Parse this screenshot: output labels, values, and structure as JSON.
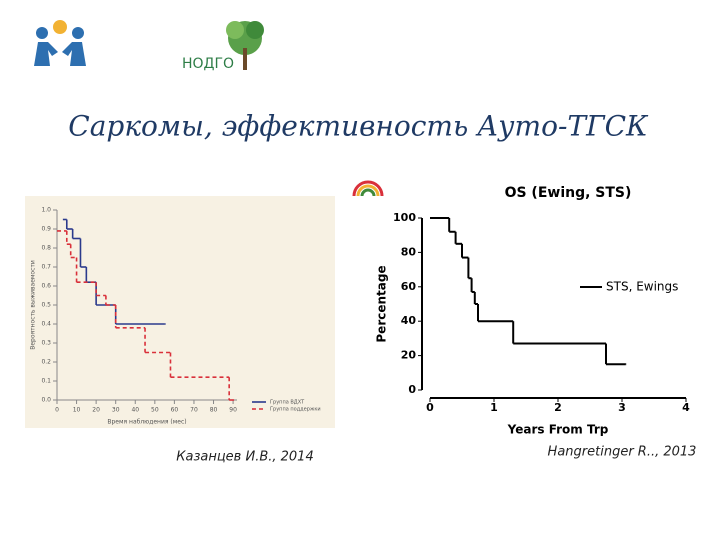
{
  "logo_text": "НОДГО",
  "title": "Саркомы, эффективность Ауто-ТГСК",
  "captions": [
    "Казанцев И.В., 2014",
    "Hangretinger R.., 2013"
  ],
  "chart_data": [
    {
      "type": "line",
      "step": true,
      "x_label": "Время наблюдения (мес)",
      "y_label": "Вероятность выживаемости",
      "xlim": [
        0,
        92
      ],
      "ylim": [
        0,
        1
      ],
      "xticks": [
        0,
        10,
        20,
        30,
        40,
        50,
        60,
        70,
        80,
        90
      ],
      "yticks": [
        {
          "value": 0,
          "label": "0.0"
        },
        0.1,
        0.2,
        0.3,
        0.4,
        0.5,
        0.6,
        0.7,
        0.8,
        0.9,
        {
          "value": 1,
          "label": "1.0"
        }
      ],
      "legend": "lower right",
      "series": [
        {
          "name": "Группа ВДХТ",
          "color": "#2b3a8c",
          "line_style": "solid",
          "x": [
            3,
            5,
            8,
            12,
            15,
            20,
            30,
            55
          ],
          "values": [
            0.95,
            0.9,
            0.85,
            0.7,
            0.62,
            0.5,
            0.4,
            0.4
          ]
        },
        {
          "name": "Группа поддержки",
          "color": "#d9303a",
          "line_style": "dashed",
          "x": [
            0,
            5,
            7,
            10,
            20,
            25,
            30,
            45,
            58,
            88,
            90
          ],
          "values": [
            0.89,
            0.82,
            0.75,
            0.62,
            0.55,
            0.5,
            0.38,
            0.25,
            0.12,
            0,
            0
          ]
        }
      ]
    },
    {
      "type": "line",
      "step": true,
      "title": "OS (Ewing, STS)",
      "x_label": "Years From Trp",
      "y_label": "Percentage",
      "xlim": [
        0,
        4
      ],
      "ylim": [
        0,
        100
      ],
      "xticks": [
        0,
        1,
        2,
        3,
        4
      ],
      "yticks": [
        0,
        20,
        40,
        60,
        80,
        100
      ],
      "legend": "right",
      "series": [
        {
          "name": "STS, Ewings",
          "color": "#000000",
          "line_style": "solid",
          "x": [
            0,
            0.3,
            0.4,
            0.5,
            0.6,
            0.65,
            0.7,
            0.75,
            1.3,
            2.75,
            3.05
          ],
          "values": [
            100,
            92,
            85,
            77,
            65,
            57,
            50,
            40,
            27,
            15,
            15
          ]
        }
      ]
    }
  ]
}
